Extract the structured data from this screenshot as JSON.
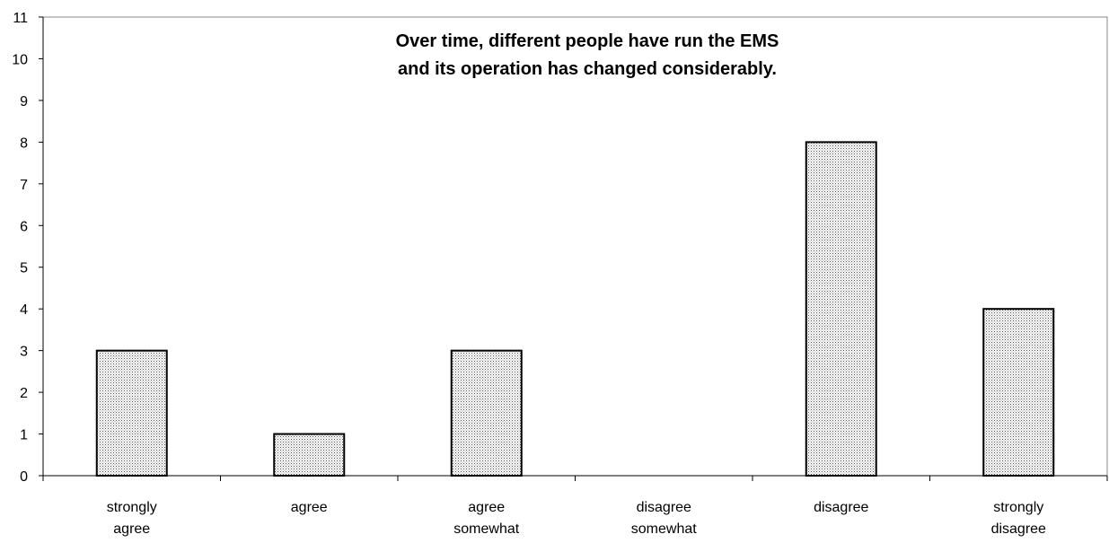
{
  "chart_data": {
    "type": "bar",
    "title_lines": [
      "Over time, different people have run the EMS",
      "and its operation has changed considerably."
    ],
    "categories": [
      [
        "strongly",
        "agree"
      ],
      [
        "agree"
      ],
      [
        "agree",
        "somewhat"
      ],
      [
        "disagree",
        "somewhat"
      ],
      [
        "disagree"
      ],
      [
        "strongly",
        "disagree"
      ]
    ],
    "values": [
      3,
      1,
      3,
      0,
      8,
      4
    ],
    "yticks": [
      0,
      1,
      2,
      3,
      4,
      5,
      6,
      7,
      8,
      9,
      10,
      11
    ],
    "ylim": [
      0,
      11
    ],
    "grid": false,
    "legend": "none",
    "bar_fill": "#d9d9d9",
    "bar_stroke": "#000000"
  }
}
